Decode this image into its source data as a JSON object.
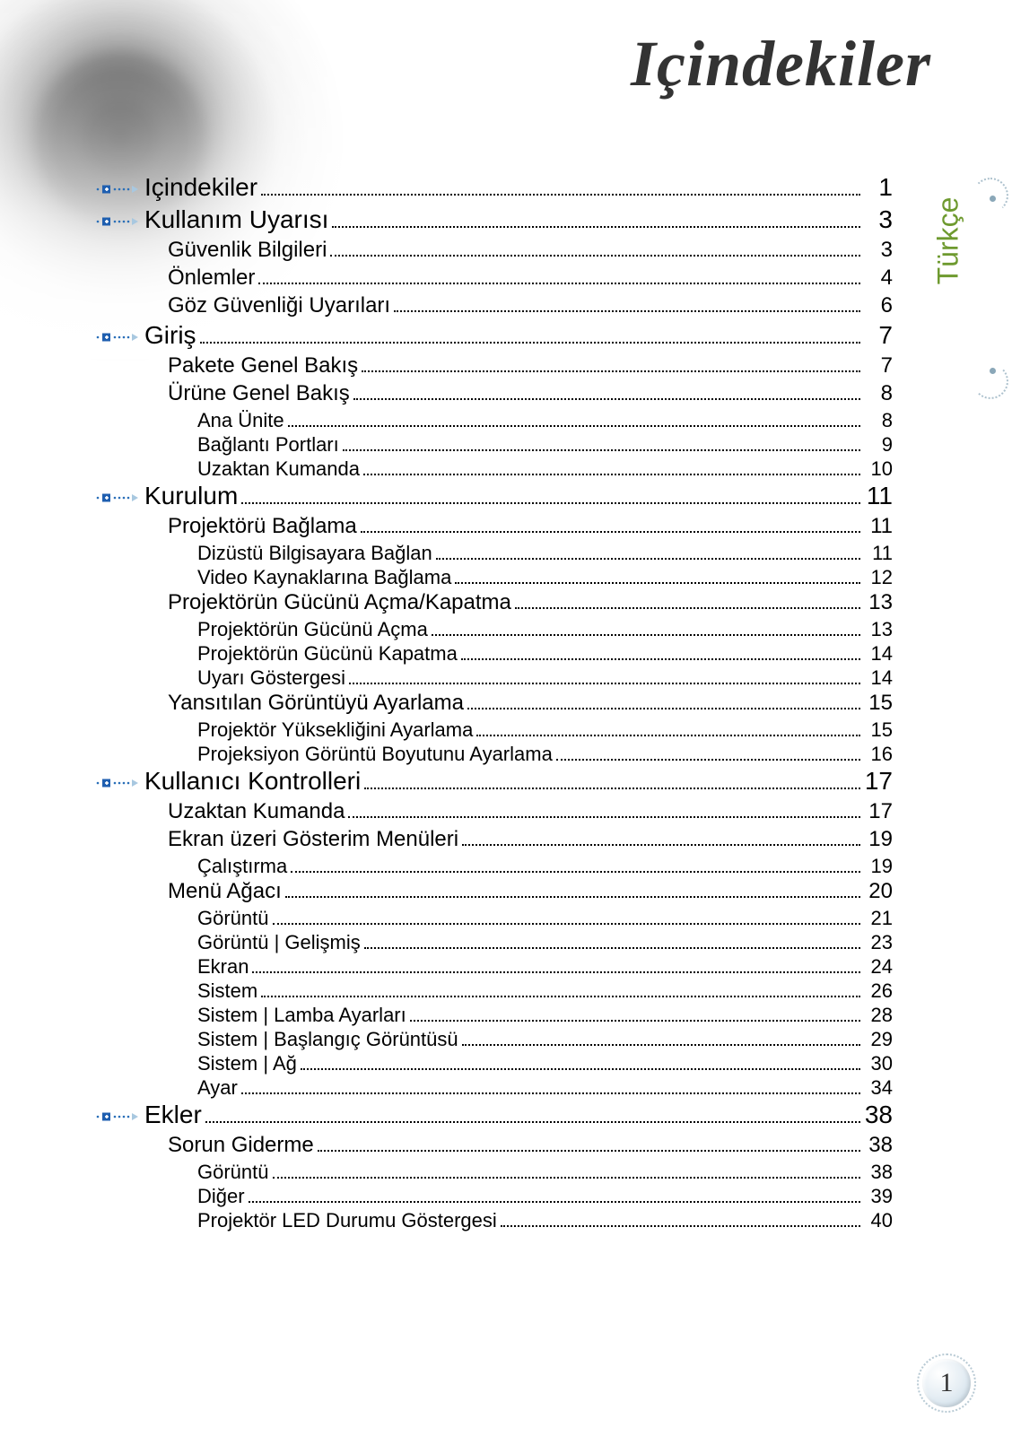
{
  "document": {
    "title": "Içindekiler",
    "side_tab_label": "Türkçe",
    "side_tab_color": "#6e9a2f",
    "page_number": "1"
  },
  "bullet_style": {
    "square_color": "#1f5fb0",
    "dot_color": "#2a6fb8",
    "arrow_color": "#a8c8e0"
  },
  "toc": [
    {
      "level": 1,
      "label": "Içindekiler",
      "page": "1"
    },
    {
      "level": 1,
      "label": "Kullanım Uyarısı",
      "page": "3"
    },
    {
      "level": 2,
      "label": "Güvenlik Bilgileri",
      "page": "3"
    },
    {
      "level": 2,
      "label": "Önlemler",
      "page": "4"
    },
    {
      "level": 2,
      "label": "Göz Güvenliği Uyarıları",
      "page": "6"
    },
    {
      "level": 1,
      "label": "Giriş",
      "page": "7"
    },
    {
      "level": 2,
      "label": "Pakete Genel Bakış",
      "page": "7"
    },
    {
      "level": 2,
      "label": "Ürüne Genel Bakış",
      "page": "8"
    },
    {
      "level": 3,
      "label": "Ana Ünite",
      "page": "8"
    },
    {
      "level": 3,
      "label": "Bağlantı Portları",
      "page": "9"
    },
    {
      "level": 3,
      "label": "Uzaktan Kumanda",
      "page": "10"
    },
    {
      "level": 1,
      "label": "Kurulum",
      "page": "11"
    },
    {
      "level": 2,
      "label": "Projektörü Bağlama",
      "page": "11"
    },
    {
      "level": 3,
      "label": "Dizüstü Bilgisayara Bağlan",
      "page": "11"
    },
    {
      "level": 3,
      "label": "Video Kaynaklarına Bağlama",
      "page": "12"
    },
    {
      "level": 2,
      "label": "Projektörün Gücünü Açma/Kapatma",
      "page": "13"
    },
    {
      "level": 3,
      "label": "Projektörün Gücünü Açma",
      "page": "13"
    },
    {
      "level": 3,
      "label": "Projektörün Gücünü Kapatma",
      "page": "14"
    },
    {
      "level": 3,
      "label": "Uyarı Göstergesi",
      "page": "14"
    },
    {
      "level": 2,
      "label": "Yansıtılan Görüntüyü Ayarlama",
      "page": "15"
    },
    {
      "level": 3,
      "label": "Projektör Yüksekliğini Ayarlama",
      "page": "15"
    },
    {
      "level": 3,
      "label": "Projeksiyon Görüntü Boyutunu Ayarlama",
      "page": "16"
    },
    {
      "level": 1,
      "label": "Kullanıcı Kontrolleri",
      "page": "17"
    },
    {
      "level": 2,
      "label": "Uzaktan Kumanda",
      "page": "17"
    },
    {
      "level": 2,
      "label": "Ekran üzeri Gösterim Menüleri",
      "page": "19"
    },
    {
      "level": 3,
      "label": "Çalıştırma",
      "page": "19"
    },
    {
      "level": 2,
      "label": "Menü Ağacı",
      "page": "20"
    },
    {
      "level": 3,
      "label": "Görüntü",
      "page": "21"
    },
    {
      "level": 3,
      "label": "Görüntü | Gelişmiş",
      "page": "23"
    },
    {
      "level": 3,
      "label": "Ekran",
      "page": "24"
    },
    {
      "level": 3,
      "label": "Sistem",
      "page": "26"
    },
    {
      "level": 3,
      "label": "Sistem | Lamba Ayarları",
      "page": "28"
    },
    {
      "level": 3,
      "label": "Sistem | Başlangıç Görüntüsü",
      "page": "29"
    },
    {
      "level": 3,
      "label": "Sistem | Ağ",
      "page": "30"
    },
    {
      "level": 3,
      "label": "Ayar",
      "page": "34"
    },
    {
      "level": 1,
      "label": "Ekler",
      "page": "38"
    },
    {
      "level": 2,
      "label": "Sorun Giderme",
      "page": "38"
    },
    {
      "level": 3,
      "label": "Görüntü",
      "page": "38"
    },
    {
      "level": 3,
      "label": "Diğer",
      "page": "39"
    },
    {
      "level": 3,
      "label": "Projektör LED Durumu Göstergesi",
      "page": "40"
    }
  ]
}
